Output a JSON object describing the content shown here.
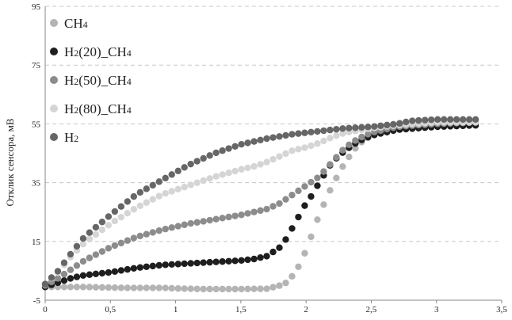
{
  "chart_data": {
    "type": "scatter",
    "title": "",
    "xlabel": "",
    "ylabel": "Отклик сенсора, мВ",
    "xlim": [
      0,
      3.5
    ],
    "ylim": [
      -5,
      95
    ],
    "x_ticks": [
      "0",
      "0,5",
      "1",
      "1,5",
      "2",
      "2,5",
      "3",
      "3,5"
    ],
    "y_ticks": [
      "-5",
      "15",
      "35",
      "55",
      "75",
      "95"
    ],
    "grid": "horizontal-dashed",
    "legend_position": "top-left",
    "series": [
      {
        "name": "CH4",
        "base": "CH",
        "sub": "4",
        "color": "#b4b4b4",
        "points": [
          [
            0,
            -0.5
          ],
          [
            0.3,
            -0.5
          ],
          [
            0.6,
            -0.8
          ],
          [
            0.9,
            -0.8
          ],
          [
            1.0,
            -1
          ],
          [
            1.2,
            -1.2
          ],
          [
            1.5,
            -1.2
          ],
          [
            1.7,
            -1.1
          ],
          [
            1.8,
            0
          ],
          [
            1.85,
            1
          ],
          [
            1.9,
            3.5
          ],
          [
            1.95,
            7
          ],
          [
            2.0,
            12
          ],
          [
            2.05,
            18
          ],
          [
            2.1,
            24
          ],
          [
            2.2,
            34
          ],
          [
            2.3,
            42
          ],
          [
            2.4,
            48
          ],
          [
            2.5,
            51
          ],
          [
            2.6,
            53
          ],
          [
            2.8,
            54
          ],
          [
            3.0,
            54.5
          ],
          [
            3.3,
            55
          ]
        ]
      },
      {
        "name": "H2(20)_CH4",
        "base": "H",
        "sub": "2",
        "rest": "(20)_CH",
        "sub2": "4",
        "color": "#1e1e1e",
        "points": [
          [
            0,
            -0.5
          ],
          [
            0.1,
            1
          ],
          [
            0.2,
            2.5
          ],
          [
            0.3,
            3.5
          ],
          [
            0.5,
            4.5
          ],
          [
            0.7,
            6
          ],
          [
            0.9,
            7
          ],
          [
            1.1,
            7.5
          ],
          [
            1.3,
            8
          ],
          [
            1.5,
            8.5
          ],
          [
            1.6,
            9
          ],
          [
            1.7,
            10
          ],
          [
            1.8,
            13
          ],
          [
            1.85,
            16
          ],
          [
            1.9,
            20
          ],
          [
            1.95,
            24
          ],
          [
            2.0,
            28
          ],
          [
            2.05,
            31
          ],
          [
            2.1,
            35
          ],
          [
            2.2,
            42
          ],
          [
            2.3,
            46
          ],
          [
            2.4,
            49
          ],
          [
            2.5,
            51
          ],
          [
            2.7,
            53
          ],
          [
            3.0,
            54
          ],
          [
            3.3,
            54.5
          ]
        ]
      },
      {
        "name": "H2(50)_CH4",
        "base": "H",
        "sub": "2",
        "rest": "(50)_CH",
        "sub2": "4",
        "color": "#8c8c8c",
        "points": [
          [
            0,
            0
          ],
          [
            0.1,
            2.5
          ],
          [
            0.2,
            5.5
          ],
          [
            0.3,
            8.5
          ],
          [
            0.5,
            13
          ],
          [
            0.7,
            16.5
          ],
          [
            0.9,
            19
          ],
          [
            1.1,
            21
          ],
          [
            1.3,
            22.5
          ],
          [
            1.5,
            24
          ],
          [
            1.6,
            25
          ],
          [
            1.7,
            26
          ],
          [
            1.8,
            28
          ],
          [
            1.9,
            31
          ],
          [
            2.0,
            34
          ],
          [
            2.1,
            37
          ],
          [
            2.2,
            42
          ],
          [
            2.3,
            47
          ],
          [
            2.4,
            50
          ],
          [
            2.5,
            52
          ],
          [
            2.7,
            54
          ],
          [
            3.0,
            55
          ],
          [
            3.3,
            55.5
          ]
        ]
      },
      {
        "name": "H2(80)_CH4",
        "base": "H",
        "sub": "2",
        "rest": "(80)_CH",
        "sub2": "4",
        "color": "#d5d5d5",
        "points": [
          [
            0,
            0.5
          ],
          [
            0.1,
            4.5
          ],
          [
            0.2,
            10
          ],
          [
            0.3,
            14.5
          ],
          [
            0.5,
            21
          ],
          [
            0.7,
            26.5
          ],
          [
            0.9,
            31
          ],
          [
            1.1,
            34
          ],
          [
            1.3,
            37
          ],
          [
            1.5,
            39.5
          ],
          [
            1.6,
            40.5
          ],
          [
            1.7,
            42
          ],
          [
            1.8,
            44
          ],
          [
            1.9,
            46
          ],
          [
            2.0,
            47
          ],
          [
            2.1,
            48.5
          ],
          [
            2.2,
            50.5
          ],
          [
            2.3,
            52
          ],
          [
            2.5,
            53.5
          ],
          [
            2.7,
            54.5
          ],
          [
            3.0,
            55.5
          ],
          [
            3.3,
            55.5
          ]
        ]
      },
      {
        "name": "H2",
        "base": "H",
        "sub": "2",
        "color": "#666666",
        "points": [
          [
            0,
            0.5
          ],
          [
            0.1,
            5
          ],
          [
            0.2,
            11
          ],
          [
            0.3,
            16.5
          ],
          [
            0.5,
            24
          ],
          [
            0.7,
            31
          ],
          [
            0.9,
            36
          ],
          [
            1.1,
            41
          ],
          [
            1.3,
            45
          ],
          [
            1.5,
            48
          ],
          [
            1.7,
            50
          ],
          [
            1.9,
            51.5
          ],
          [
            2.1,
            52.5
          ],
          [
            2.3,
            53.5
          ],
          [
            2.5,
            54
          ],
          [
            2.7,
            55
          ],
          [
            2.8,
            56
          ],
          [
            3.0,
            56.5
          ],
          [
            3.3,
            56.5
          ]
        ]
      }
    ]
  }
}
